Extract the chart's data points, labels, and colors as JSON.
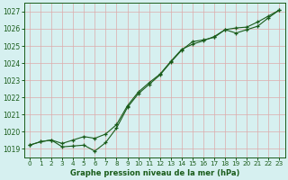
{
  "title": "Graphe pression niveau de la mer (hPa)",
  "background_color": "#d6f0f0",
  "grid_color": "#ddaaaa",
  "line_color": "#1a5c1a",
  "x_ticks": [
    0,
    1,
    2,
    3,
    4,
    5,
    6,
    7,
    8,
    9,
    10,
    11,
    12,
    13,
    14,
    15,
    16,
    17,
    18,
    19,
    20,
    21,
    22,
    23
  ],
  "ylim": [
    1018.5,
    1027.5
  ],
  "yticks": [
    1019,
    1020,
    1021,
    1022,
    1023,
    1024,
    1025,
    1026,
    1027
  ],
  "line1_x": [
    0,
    1,
    2,
    3,
    4,
    5,
    6,
    7,
    8,
    9,
    10,
    11,
    12,
    13,
    14,
    15,
    16,
    17,
    18,
    19,
    20,
    21,
    22,
    23
  ],
  "line1_y": [
    1019.2,
    1019.4,
    1019.5,
    1019.1,
    1019.15,
    1019.2,
    1018.85,
    1019.35,
    1020.2,
    1021.4,
    1022.2,
    1022.75,
    1023.3,
    1024.05,
    1024.75,
    1025.25,
    1025.35,
    1025.5,
    1025.95,
    1025.75,
    1025.95,
    1026.15,
    1026.65,
    1027.1
  ],
  "line2_x": [
    0,
    1,
    2,
    3,
    4,
    5,
    6,
    7,
    8,
    9,
    10,
    11,
    12,
    13,
    14,
    15,
    16,
    17,
    18,
    19,
    20,
    21,
    22,
    23
  ],
  "line2_y": [
    1019.2,
    1019.4,
    1019.5,
    1019.3,
    1019.5,
    1019.7,
    1019.6,
    1019.85,
    1020.4,
    1021.5,
    1022.3,
    1022.85,
    1023.35,
    1024.1,
    1024.8,
    1025.1,
    1025.3,
    1025.55,
    1025.95,
    1026.05,
    1026.1,
    1026.4,
    1026.75,
    1027.1
  ]
}
